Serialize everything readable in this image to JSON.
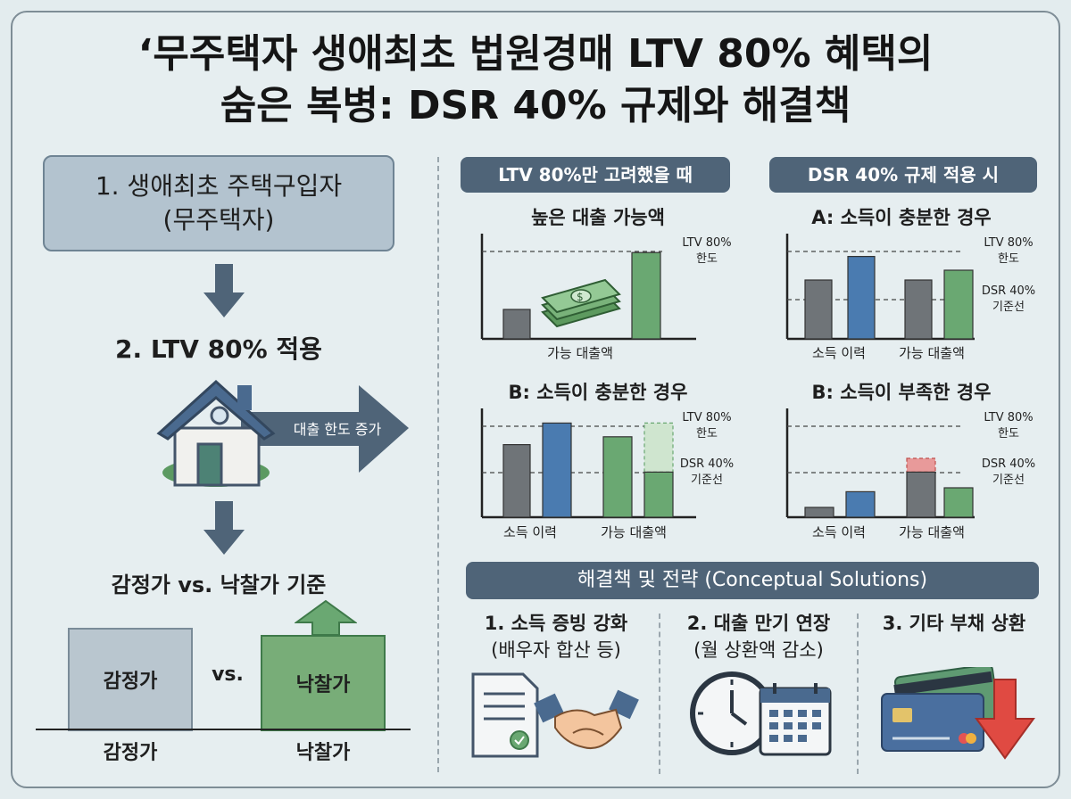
{
  "title": {
    "line1": "‘무주택자 생애최초 법원경매 LTV 80% 혜택의",
    "line2": "숨은 복병: DSR 40% 규제와 해결책"
  },
  "left": {
    "step1_line1": "1. 생애최초 주택구입자",
    "step1_line2": "(무주택자)",
    "step2": "2. LTV 80% 적용",
    "arrow_label": "대출 한도 증가",
    "basis_title": "감정가 vs. 낙찰가 기준",
    "appraisal_label": "감정가",
    "vs_label": "vs.",
    "bid_label": "낙찰가",
    "appraisal_base": "감정가",
    "bid_base": "낙찰가"
  },
  "headers": {
    "ltv_only": "LTV 80%만 고려했을 때",
    "dsr_applied": "DSR 40% 규제 적용 시"
  },
  "chart_labels": {
    "ltv_line": [
      "LTV 80%",
      "한도"
    ],
    "dsr_line": [
      "DSR 40%",
      "기준선"
    ],
    "income_history": "소득 이력",
    "loan_available": "가능 대출액"
  },
  "chart_data": [
    {
      "type": "bar",
      "title": "높은 대출 가능액",
      "categories": [
        "",
        "가능 대출액"
      ],
      "series": [
        {
          "values": [
            1.5,
            4.4
          ]
        }
      ],
      "reference_lines": [
        "LTV 80% 한도"
      ],
      "colors": [
        "#6f7478",
        "#6aa872"
      ]
    },
    {
      "type": "bar",
      "title": "A: 소득이 충분한 경우",
      "categories": [
        "소득 이력",
        "가능 대출액"
      ],
      "series": [
        {
          "values": [
            3.0,
            4.2
          ]
        },
        {
          "values": [
            3.0,
            3.5
          ]
        }
      ],
      "reference_lines": [
        "LTV 80% 한도",
        "DSR 40% 기준선"
      ],
      "colors": [
        "#6f7478",
        "#4a7bb0",
        "#6aa872"
      ]
    },
    {
      "type": "bar",
      "title": "B: 소득이 충분한 경우",
      "categories": [
        "소득 이력",
        "가능 대출액"
      ],
      "series": [
        {
          "values": [
            3.7,
            4.8
          ]
        },
        {
          "values": [
            4.1,
            2.3
          ]
        }
      ],
      "excess": {
        "value_from": 2.3,
        "value_to": 4.8
      },
      "reference_lines": [
        "LTV 80% 한도",
        "DSR 40% 기준선"
      ],
      "colors": [
        "#6f7478",
        "#4a7bb0",
        "#6aa872"
      ]
    },
    {
      "type": "bar",
      "title": "B: 소득이 부족한 경우",
      "categories": [
        "소득 이력",
        "가능 대출액"
      ],
      "series": [
        {
          "values": [
            0.5,
            1.3
          ]
        },
        {
          "values": [
            2.3,
            1.5
          ]
        }
      ],
      "excess": {
        "value_from": 2.3,
        "value_to": 3.0
      },
      "reference_lines": [
        "LTV 80% 한도",
        "DSR 40% 기준선"
      ],
      "colors": [
        "#6f7478",
        "#4a7bb0",
        "#6aa872",
        "#e89a9a"
      ]
    }
  ],
  "solutions": {
    "header": "해결책 및 전략 (Conceptual Solutions)",
    "items": [
      {
        "line1": "1. 소득 증빙 강화",
        "line2": "(배우자 합산 등)",
        "icon": "document-handshake-icon"
      },
      {
        "line1": "2. 대출 만기 연장",
        "line2": "(월 상환액 감소)",
        "icon": "clock-calendar-icon"
      },
      {
        "line1": "3. 기타 부채 상환",
        "line2": "",
        "icon": "credit-card-down-arrow-icon"
      }
    ]
  },
  "colors": {
    "header_pill": "#4f6478",
    "gray_bar": "#6f7478",
    "blue_bar": "#4a7bb0",
    "green_bar": "#6aa872",
    "red_excess": "#e89a9a"
  }
}
